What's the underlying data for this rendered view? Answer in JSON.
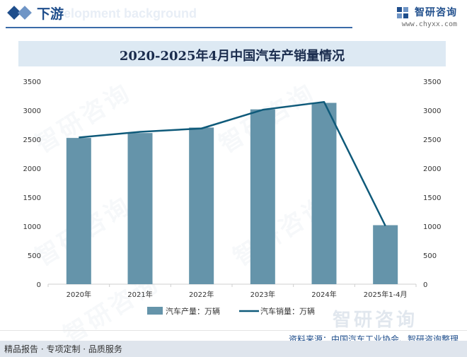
{
  "header": {
    "title": "下游",
    "ghost_text": "elopment background"
  },
  "brand": {
    "name": "智研咨询",
    "url": "www.chyxx.com"
  },
  "footer": {
    "left": "精品报告 · 专项定制 · 品质服务",
    "source": "资料来源：中国汽车工业协会、智研咨询整理"
  },
  "watermark": {
    "text": "智研咨询"
  },
  "colors": {
    "bar": "#6594aa",
    "line": "#0f5a7a",
    "title_bg": "#dde9f3",
    "accent": "#1f4e8c"
  },
  "chart_data": {
    "type": "bar",
    "title": "2020-2025年4月中国汽车产销量情况",
    "categories": [
      "2020年",
      "2021年",
      "2022年",
      "2023年",
      "2024年",
      "2025年1-4月"
    ],
    "series": [
      {
        "name": "汽车产量：万辆",
        "type": "bar",
        "axis": "left",
        "values": [
          2523,
          2608,
          2702,
          3016,
          3128,
          1018
        ]
      },
      {
        "name": "汽车销量：万辆",
        "type": "line",
        "axis": "right",
        "values": [
          2531,
          2628,
          2686,
          3009,
          3144,
          1006
        ]
      }
    ],
    "y_left": {
      "min": 0,
      "max": 3500,
      "ticks": [
        0,
        500,
        1000,
        1500,
        2000,
        2500,
        3000,
        3500
      ]
    },
    "y_right": {
      "min": 0,
      "max": 3500,
      "ticks": [
        0,
        500,
        1000,
        1500,
        2000,
        2500,
        3000,
        3500
      ]
    },
    "grid": false,
    "legend_position": "bottom"
  }
}
